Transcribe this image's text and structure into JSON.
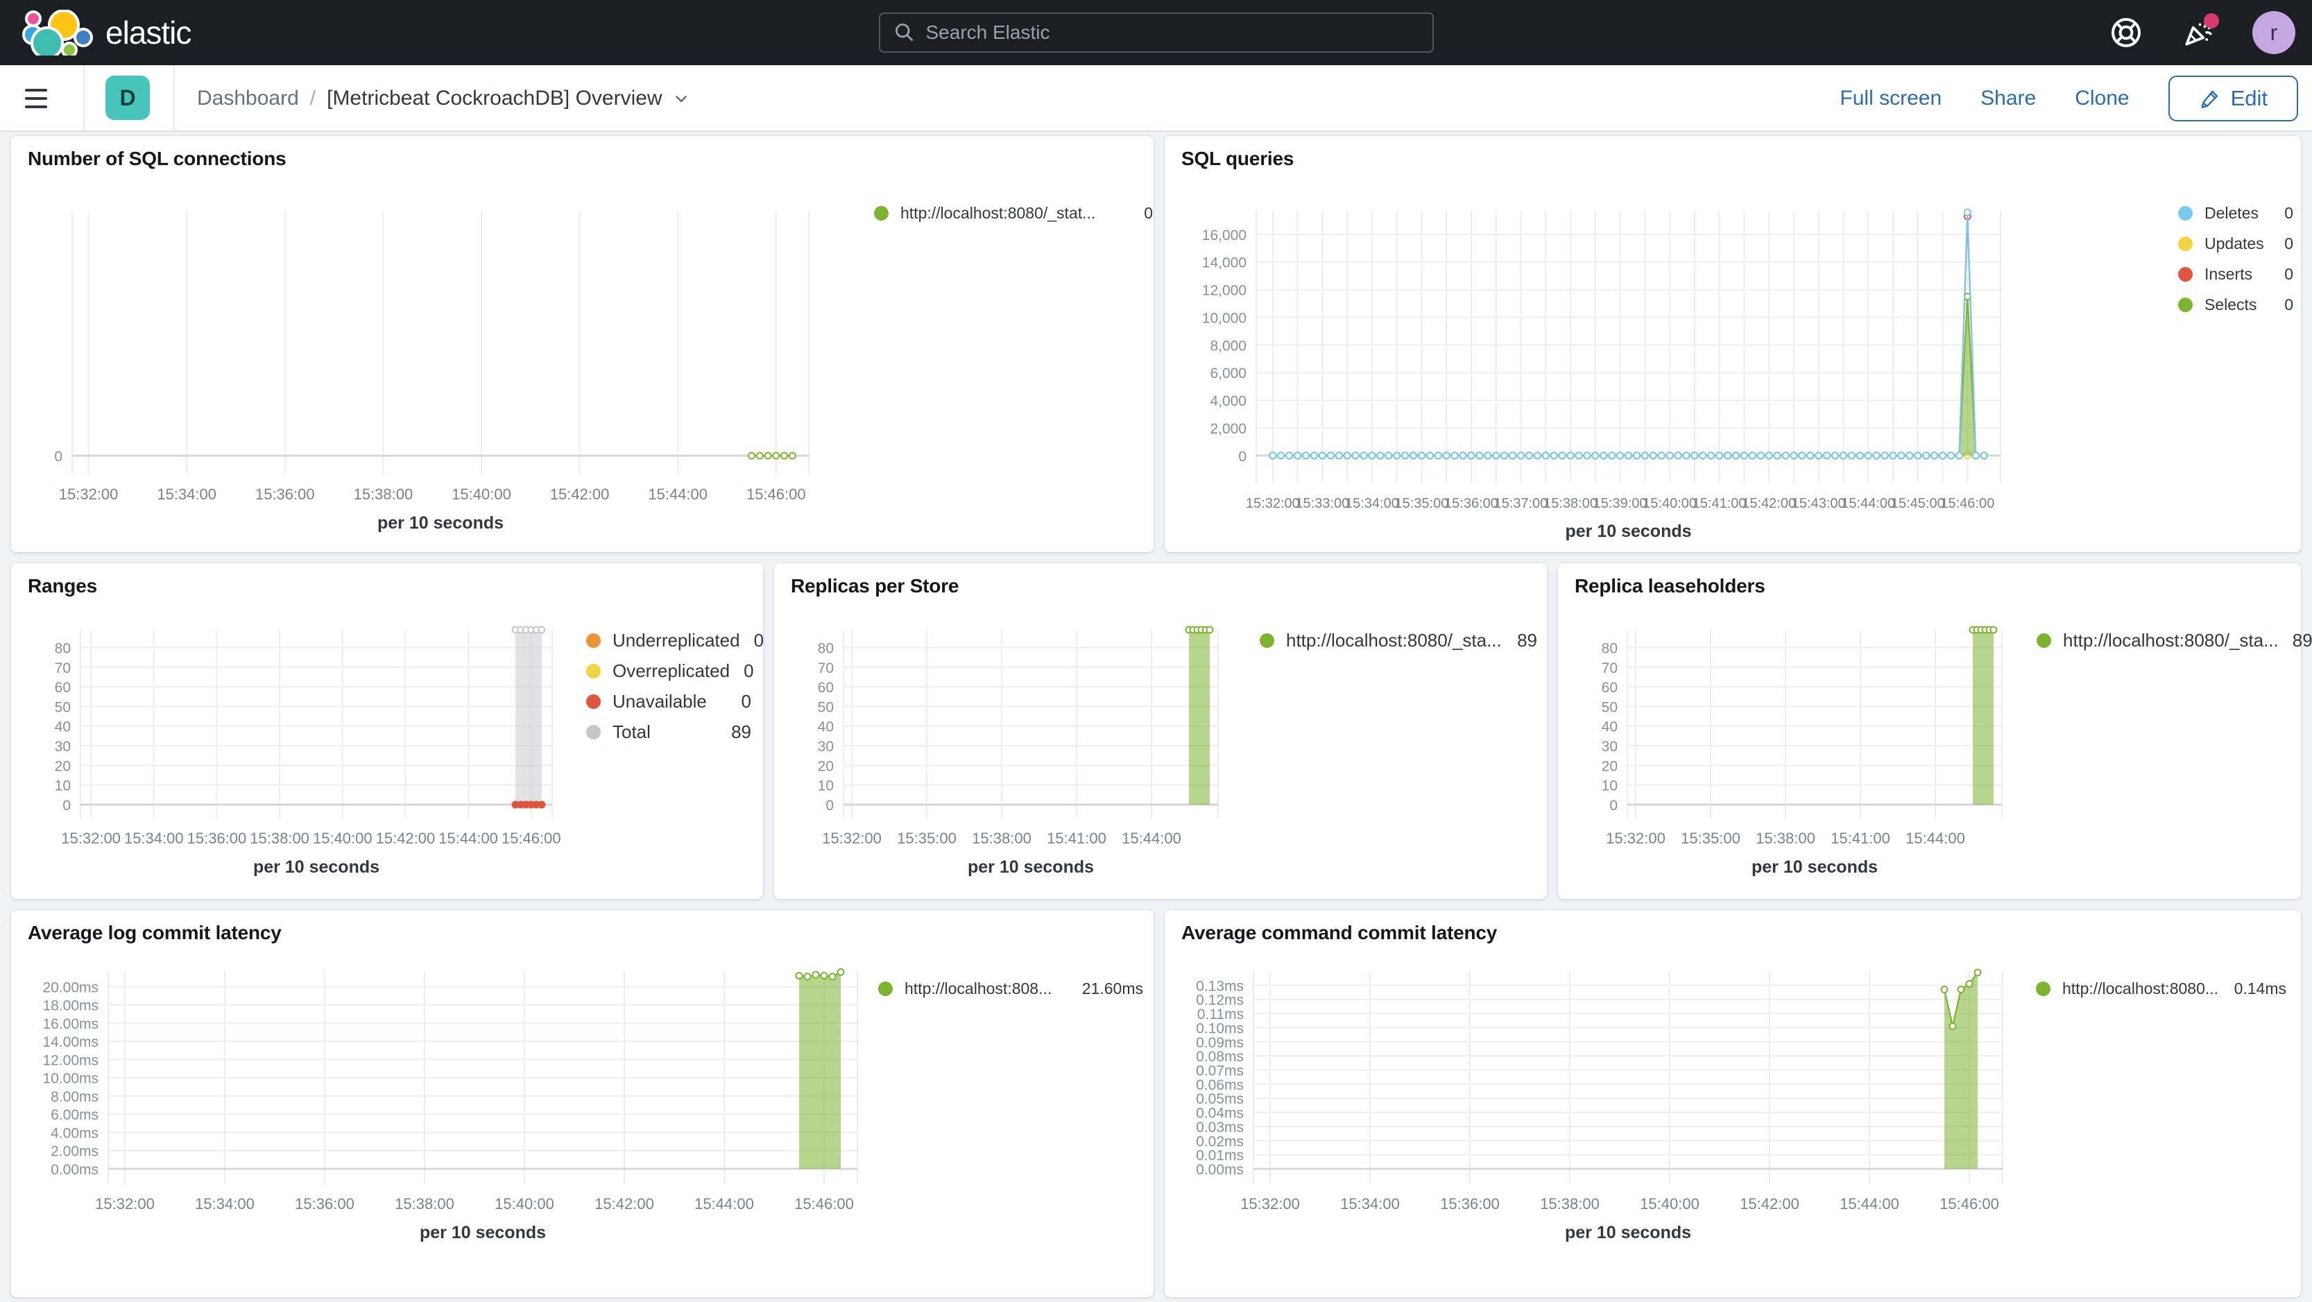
{
  "header": {
    "logo_text": "elastic",
    "search_placeholder": "Search Elastic",
    "user_initial": "r"
  },
  "toolbar": {
    "breadcrumb_root": "Dashboard",
    "breadcrumb_separator": "/",
    "breadcrumb_current": "[Metricbeat CockroachDB] Overview",
    "full_screen_label": "Full screen",
    "share_label": "Share",
    "clone_label": "Clone",
    "edit_label": "Edit"
  },
  "colors": {
    "header_bg": "#1d1e24",
    "accent_blue": "#2a6cb3",
    "series_green": "#7DB32F",
    "series_blue": "#79C9EC",
    "series_yellow": "#F1D343",
    "series_red": "#E0553F",
    "series_orange": "#EE9336",
    "series_gray": "#C4C6CA",
    "space_badge_teal": "#48C5BB",
    "notification_pink": "#D63A6F",
    "avatar_purple": "#C6A7E2"
  },
  "chart_data": [
    {
      "id": "sql-connections",
      "type": "line",
      "title": "Number of SQL connections",
      "x_axis_title": "per 10 seconds",
      "ylim": [
        0,
        1
      ],
      "y_ticks": {
        "values": [
          0
        ],
        "labels": [
          "0"
        ]
      },
      "x_ticks": {
        "times": [
          20,
          140,
          260,
          380,
          500,
          620,
          740,
          860
        ],
        "labels": [
          "15:32:00",
          "15:34:00",
          "15:36:00",
          "15:38:00",
          "15:40:00",
          "15:42:00",
          "15:44:00",
          "15:46:00"
        ]
      },
      "legend": [
        {
          "label": "http://localhost:8080/_stat...",
          "value": "0",
          "color": "#7DB32F"
        }
      ],
      "series": [
        {
          "name": "http://localhost:8080/_stat...",
          "color": "#7DB32F",
          "type": "line",
          "markers": "hollow",
          "baseline": {
            "from": 830,
            "to": 880,
            "step": 10,
            "value": 0
          }
        }
      ]
    },
    {
      "id": "sql-queries",
      "type": "line",
      "title": "SQL queries",
      "x_axis_title": "per 10 seconds",
      "ylim": [
        0,
        17700
      ],
      "y_ticks": {
        "values": [
          0,
          2000,
          4000,
          6000,
          8000,
          10000,
          12000,
          14000,
          16000
        ],
        "labels": [
          "0",
          "2,000",
          "4,000",
          "6,000",
          "8,000",
          "10,000",
          "12,000",
          "14,000",
          "16,000"
        ]
      },
      "x_ticks": {
        "times": [
          20,
          80,
          140,
          200,
          260,
          320,
          380,
          440,
          500,
          560,
          620,
          680,
          740,
          800,
          860
        ],
        "labels": [
          "15:32:00",
          "15:33:00",
          "15:34:00",
          "15:35:00",
          "15:36:00",
          "15:37:00",
          "15:38:00",
          "15:39:00",
          "15:40:00",
          "15:41:00",
          "15:42:00",
          "15:43:00",
          "15:44:00",
          "15:45:00",
          "15:46:00"
        ]
      },
      "legend": [
        {
          "label": "Deletes",
          "value": "0",
          "color": "#79C9EC"
        },
        {
          "label": "Updates",
          "value": "0",
          "color": "#F1D343"
        },
        {
          "label": "Inserts",
          "value": "0",
          "color": "#E0553F"
        },
        {
          "label": "Selects",
          "value": "0",
          "color": "#7DB32F"
        }
      ],
      "series": [
        {
          "name": "Updates",
          "color": "#F1D343",
          "type": "line",
          "markers": "hollow",
          "baseline": {
            "from": 20,
            "to": 880,
            "step": 10,
            "value": 0
          }
        },
        {
          "name": "Inserts",
          "color": "#E0553F",
          "type": "line",
          "markers": "hollow",
          "baseline": {
            "from": 20,
            "to": 880,
            "step": 10,
            "value": 0
          },
          "points": [
            [
              860,
              17300
            ]
          ]
        },
        {
          "name": "Selects",
          "color": "#7DB32F",
          "type": "area",
          "fill": "rgba(125,179,47,0.55)",
          "markers": "hollow",
          "baseline": {
            "from": 20,
            "to": 880,
            "step": 10,
            "value": 0
          },
          "points": [
            [
              860,
              11500
            ]
          ]
        },
        {
          "name": "Deletes",
          "color": "#79C9EC",
          "type": "line",
          "markers": "hollow",
          "baseline": {
            "from": 20,
            "to": 880,
            "step": 10,
            "value": 0
          },
          "points": [
            [
              860,
              17600
            ]
          ]
        }
      ]
    },
    {
      "id": "ranges",
      "type": "line",
      "title": "Ranges",
      "x_axis_title": "per 10 seconds",
      "ylim": [
        0,
        89
      ],
      "y_ticks": {
        "values": [
          0,
          10,
          20,
          30,
          40,
          50,
          60,
          70,
          80
        ],
        "labels": [
          "0",
          "10",
          "20",
          "30",
          "40",
          "50",
          "60",
          "70",
          "80"
        ]
      },
      "x_ticks": {
        "times": [
          20,
          140,
          260,
          380,
          500,
          620,
          740,
          860
        ],
        "labels": [
          "15:32:00",
          "15:34:00",
          "15:36:00",
          "15:38:00",
          "15:40:00",
          "15:42:00",
          "15:44:00",
          "15:46:00"
        ]
      },
      "legend": [
        {
          "label": "Underreplicated",
          "value": "0",
          "color": "#EE9336"
        },
        {
          "label": "Overreplicated",
          "value": "0",
          "color": "#F1D343"
        },
        {
          "label": "Unavailable",
          "value": "0",
          "color": "#E0553F"
        },
        {
          "label": "Total",
          "value": "89",
          "color": "#C4C6CA"
        }
      ],
      "series": [
        {
          "name": "Total",
          "color": "#C4C6CA",
          "type": "area",
          "fill": "rgba(197,198,202,0.5)",
          "markers": "hollow",
          "baseline": {
            "from": 830,
            "to": 880,
            "step": 10,
            "value": 89
          }
        },
        {
          "name": "Underreplicated",
          "color": "#EE9336",
          "type": "line",
          "markers": "solid",
          "baseline": {
            "from": 830,
            "to": 880,
            "step": 10,
            "value": 0
          }
        },
        {
          "name": "Overreplicated",
          "color": "#F1D343",
          "type": "line",
          "markers": "solid",
          "baseline": {
            "from": 830,
            "to": 880,
            "step": 10,
            "value": 0
          }
        },
        {
          "name": "Unavailable",
          "color": "#E0553F",
          "type": "line",
          "markers": "solid",
          "baseline": {
            "from": 830,
            "to": 880,
            "step": 10,
            "value": 0
          }
        }
      ]
    },
    {
      "id": "replicas-per-store",
      "type": "area",
      "title": "Replicas per Store",
      "x_axis_title": "per 10 seconds",
      "ylim": [
        0,
        89
      ],
      "y_ticks": {
        "values": [
          0,
          10,
          20,
          30,
          40,
          50,
          60,
          70,
          80
        ],
        "labels": [
          "0",
          "10",
          "20",
          "30",
          "40",
          "50",
          "60",
          "70",
          "80"
        ]
      },
      "x_ticks": {
        "times": [
          20,
          200,
          380,
          560,
          740
        ],
        "labels": [
          "15:32:00",
          "15:35:00",
          "15:38:00",
          "15:41:00",
          "15:44:00"
        ]
      },
      "legend": [
        {
          "label": "http://localhost:8080/_sta...",
          "value": "89",
          "color": "#7DB32F"
        }
      ],
      "series": [
        {
          "name": "http://localhost:8080/_sta...",
          "color": "#7DB32F",
          "type": "area",
          "fill": "rgba(125,179,47,0.55)",
          "markers": "hollow",
          "baseline": {
            "from": 830,
            "to": 880,
            "step": 10,
            "value": 89
          }
        }
      ]
    },
    {
      "id": "replica-leaseholders",
      "type": "area",
      "title": "Replica leaseholders",
      "x_axis_title": "per 10 seconds",
      "ylim": [
        0,
        89
      ],
      "y_ticks": {
        "values": [
          0,
          10,
          20,
          30,
          40,
          50,
          60,
          70,
          80
        ],
        "labels": [
          "0",
          "10",
          "20",
          "30",
          "40",
          "50",
          "60",
          "70",
          "80"
        ]
      },
      "x_ticks": {
        "times": [
          20,
          200,
          380,
          560,
          740
        ],
        "labels": [
          "15:32:00",
          "15:35:00",
          "15:38:00",
          "15:41:00",
          "15:44:00"
        ]
      },
      "legend": [
        {
          "label": "http://localhost:8080/_sta...",
          "value": "89",
          "color": "#7DB32F"
        }
      ],
      "series": [
        {
          "name": "http://localhost:8080/_sta...",
          "color": "#7DB32F",
          "type": "area",
          "fill": "rgba(125,179,47,0.55)",
          "markers": "hollow",
          "baseline": {
            "from": 830,
            "to": 880,
            "step": 10,
            "value": 89
          }
        }
      ]
    },
    {
      "id": "avg-log-commit-latency",
      "type": "area",
      "title": "Average log commit latency",
      "x_axis_title": "per 10 seconds",
      "ylim": [
        0,
        21.7
      ],
      "y_ticks": {
        "values": [
          0,
          2,
          4,
          6,
          8,
          10,
          12,
          14,
          16,
          18,
          20
        ],
        "labels": [
          "0.00ms",
          "2.00ms",
          "4.00ms",
          "6.00ms",
          "8.00ms",
          "10.00ms",
          "12.00ms",
          "14.00ms",
          "16.00ms",
          "18.00ms",
          "20.00ms"
        ]
      },
      "x_ticks": {
        "times": [
          20,
          140,
          260,
          380,
          500,
          620,
          740,
          860
        ],
        "labels": [
          "15:32:00",
          "15:34:00",
          "15:36:00",
          "15:38:00",
          "15:40:00",
          "15:42:00",
          "15:44:00",
          "15:46:00"
        ]
      },
      "legend": [
        {
          "label": "http://localhost:808...",
          "value": "21.60ms",
          "color": "#7DB32F"
        }
      ],
      "series": [
        {
          "name": "http://localhost:808...",
          "color": "#7DB32F",
          "type": "area",
          "fill": "rgba(125,179,47,0.55)",
          "markers": "hollow",
          "points": [
            [
              830,
              21.2
            ],
            [
              840,
              21.1
            ],
            [
              850,
              21.3
            ],
            [
              860,
              21.2
            ],
            [
              870,
              21.1
            ],
            [
              880,
              21.6
            ]
          ]
        }
      ]
    },
    {
      "id": "avg-command-commit-latency",
      "type": "area",
      "title": "Average command commit latency",
      "x_axis_title": "per 10 seconds",
      "ylim": [
        0,
        0.14
      ],
      "y_ticks": {
        "values": [
          0,
          0.01,
          0.02,
          0.03,
          0.04,
          0.05,
          0.06,
          0.07,
          0.08,
          0.09,
          0.1,
          0.11,
          0.12,
          0.13
        ],
        "labels": [
          "0.00ms",
          "0.01ms",
          "0.02ms",
          "0.03ms",
          "0.04ms",
          "0.05ms",
          "0.06ms",
          "0.07ms",
          "0.08ms",
          "0.09ms",
          "0.10ms",
          "0.11ms",
          "0.12ms",
          "0.13ms"
        ]
      },
      "x_ticks": {
        "times": [
          20,
          140,
          260,
          380,
          500,
          620,
          740,
          860
        ],
        "labels": [
          "15:32:00",
          "15:34:00",
          "15:36:00",
          "15:38:00",
          "15:40:00",
          "15:42:00",
          "15:44:00",
          "15:46:00"
        ]
      },
      "legend": [
        {
          "label": "http://localhost:8080...",
          "value": "0.14ms",
          "color": "#7DB32F"
        }
      ],
      "series": [
        {
          "name": "http://localhost:8080...",
          "color": "#7DB32F",
          "type": "area",
          "fill": "rgba(125,179,47,0.55)",
          "markers": "hollow",
          "points": [
            [
              830,
              0.127
            ],
            [
              840,
              0.101
            ],
            [
              850,
              0.127
            ],
            [
              860,
              0.131
            ],
            [
              870,
              0.139
            ]
          ]
        }
      ]
    }
  ]
}
